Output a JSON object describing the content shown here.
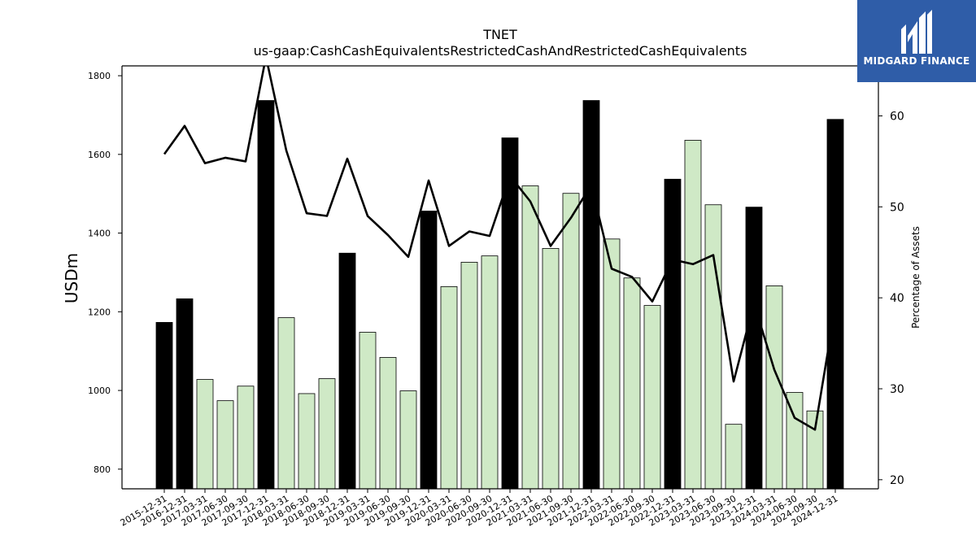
{
  "chart_data": {
    "type": "bar+line",
    "title": "TNET",
    "subtitle": "us-gaap:CashCashEquivalentsRestrictedCashAndRestrictedCashEquivalents",
    "ylabel": "USDm",
    "y2label": "Percentage of Assets",
    "ylim": [
      750,
      1825
    ],
    "y2lim": [
      19,
      65.5
    ],
    "yticks": [
      800,
      1000,
      1200,
      1400,
      1600,
      1800
    ],
    "y2ticks": [
      20,
      30,
      40,
      50,
      60
    ],
    "categories": [
      "2015-12-31",
      "2016-12-31",
      "2017-03-31",
      "2017-06-30",
      "2017-09-30",
      "2017-12-31",
      "2018-03-31",
      "2018-06-30",
      "2018-09-30",
      "2018-12-31",
      "2019-03-31",
      "2019-06-30",
      "2019-09-30",
      "2019-12-31",
      "2020-03-31",
      "2020-06-30",
      "2020-09-30",
      "2020-12-31",
      "2021-03-31",
      "2021-06-30",
      "2021-09-30",
      "2021-12-31",
      "2022-03-31",
      "2022-06-30",
      "2022-09-30",
      "2022-12-31",
      "2023-03-31",
      "2023-06-30",
      "2023-09-30",
      "2023-12-31",
      "2024-03-31",
      "2024-06-30",
      "2024-09-30",
      "2024-12-31"
    ],
    "bar_values": [
      1173,
      1233,
      1028,
      974,
      1011,
      1737,
      1185,
      992,
      1030,
      1349,
      1148,
      1084,
      999,
      1456,
      1264,
      1326,
      1342,
      1642,
      1520,
      1361,
      1501,
      1737,
      1385,
      1286,
      1216,
      1537,
      1636,
      1472,
      914,
      1466,
      1266,
      995,
      948,
      1689
    ],
    "bar_highlight": [
      true,
      true,
      false,
      false,
      false,
      true,
      false,
      false,
      false,
      true,
      false,
      false,
      false,
      true,
      false,
      false,
      false,
      true,
      false,
      false,
      false,
      true,
      false,
      false,
      false,
      true,
      false,
      false,
      false,
      true,
      false,
      false,
      false,
      true
    ],
    "line_values": [
      55.8,
      58.9,
      54.8,
      55.4,
      55.0,
      66.5,
      56.2,
      49.3,
      49.0,
      55.3,
      49.0,
      46.9,
      44.5,
      52.9,
      45.7,
      47.3,
      46.8,
      53.4,
      50.6,
      45.7,
      48.8,
      52.4,
      43.2,
      42.3,
      39.6,
      44.2,
      43.7,
      44.7,
      30.8,
      39.4,
      32.1,
      26.8,
      25.5,
      39.0
    ],
    "colors": {
      "highlight_bar": "#000000",
      "bar": "#cfe9c6",
      "bar_edge": "#000000",
      "line": "#000000"
    },
    "grid": false,
    "legend": "none"
  },
  "logo": {
    "name": "midgard-logo-mark",
    "text": "MIDGARD FINANCE"
  }
}
